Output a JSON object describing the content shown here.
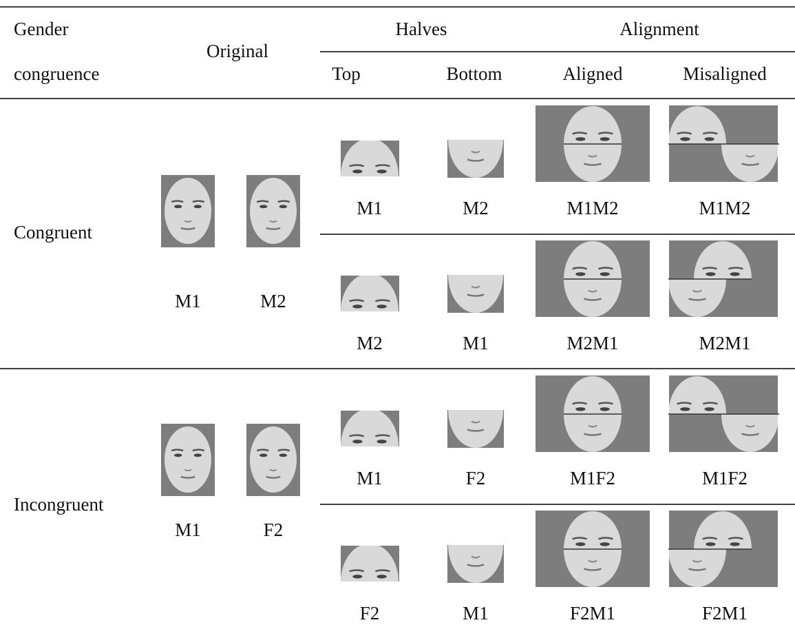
{
  "header": {
    "gender": [
      "Gender",
      "congruence"
    ],
    "original": "Original",
    "halves": "Halves",
    "alignment": "Alignment",
    "top": "Top",
    "bottom": "Bottom",
    "aligned": "Aligned",
    "misaligned": "Misaligned"
  },
  "groups": [
    {
      "label": "Congruent",
      "original": [
        "M1",
        "M2"
      ],
      "pairs": [
        {
          "top": "M1",
          "bottom": "M2",
          "aligned": "M1M2",
          "misaligned": "M1M2"
        },
        {
          "top": "M2",
          "bottom": "M1",
          "aligned": "M2M1",
          "misaligned": "M2M1"
        }
      ]
    },
    {
      "label": "Incongruent",
      "original": [
        "M1",
        "F2"
      ],
      "pairs": [
        {
          "top": "M1",
          "bottom": "F2",
          "aligned": "M1F2",
          "misaligned": "M1F2"
        },
        {
          "top": "F2",
          "bottom": "M1",
          "aligned": "F2M1",
          "misaligned": "F2M1"
        }
      ]
    }
  ]
}
